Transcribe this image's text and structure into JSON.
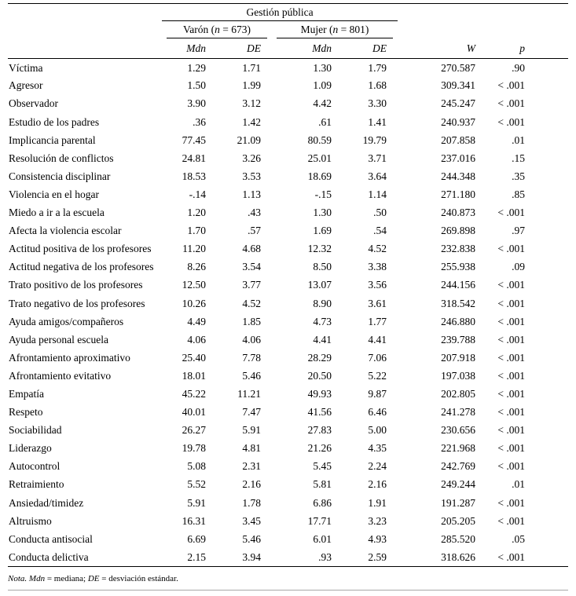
{
  "table": {
    "spanner": "Gestión pública",
    "groups": [
      {
        "pre": "Varón (",
        "n": "n",
        "post": " = 673)"
      },
      {
        "pre": "Mujer (",
        "n": "n",
        "post": " = 801)"
      }
    ],
    "columns": [
      "Mdn",
      "DE",
      "Mdn",
      "DE",
      "W",
      "p"
    ],
    "rows": [
      {
        "label": "Víctima",
        "values": [
          "1.29",
          "1.71",
          "1.30",
          "1.79",
          "270.587",
          ".90"
        ]
      },
      {
        "label": "Agresor",
        "values": [
          "1.50",
          "1.99",
          "1.09",
          "1.68",
          "309.341",
          "< .001"
        ]
      },
      {
        "label": "Observador",
        "values": [
          "3.90",
          "3.12",
          "4.42",
          "3.30",
          "245.247",
          "< .001"
        ]
      },
      {
        "label": "Estudio de los padres",
        "values": [
          ".36",
          "1.42",
          ".61",
          "1.41",
          "240.937",
          "< .001"
        ]
      },
      {
        "label": "Implicancia parental",
        "values": [
          "77.45",
          "21.09",
          "80.59",
          "19.79",
          "207.858",
          ".01"
        ]
      },
      {
        "label": "Resolución de conflictos",
        "values": [
          "24.81",
          "3.26",
          "25.01",
          "3.71",
          "237.016",
          ".15"
        ]
      },
      {
        "label": "Consistencia disciplinar",
        "values": [
          "18.53",
          "3.53",
          "18.69",
          "3.64",
          "244.348",
          ".35"
        ]
      },
      {
        "label": "Violencia en el hogar",
        "values": [
          "-.14",
          "1.13",
          "-.15",
          "1.14",
          "271.180",
          ".85"
        ]
      },
      {
        "label": "Miedo a ir a la escuela",
        "values": [
          "1.20",
          ".43",
          "1.30",
          ".50",
          "240.873",
          "< .001"
        ]
      },
      {
        "label": "Afecta la violencia escolar",
        "values": [
          "1.70",
          ".57",
          "1.69",
          ".54",
          "269.898",
          ".97"
        ]
      },
      {
        "label": "Actitud positiva de los profesores",
        "values": [
          "11.20",
          "4.68",
          "12.32",
          "4.52",
          "232.838",
          "< .001"
        ]
      },
      {
        "label": "Actitud negativa de los profesores",
        "values": [
          "8.26",
          "3.54",
          "8.50",
          "3.38",
          "255.938",
          ".09"
        ]
      },
      {
        "label": "Trato positivo de los profesores",
        "values": [
          "12.50",
          "3.77",
          "13.07",
          "3.56",
          "244.156",
          "< .001"
        ]
      },
      {
        "label": "Trato negativo de los profesores",
        "values": [
          "10.26",
          "4.52",
          "8.90",
          "3.61",
          "318.542",
          "< .001"
        ]
      },
      {
        "label": "Ayuda amigos/compañeros",
        "values": [
          "4.49",
          "1.85",
          "4.73",
          "1.77",
          "246.880",
          "< .001"
        ]
      },
      {
        "label": "Ayuda personal escuela",
        "values": [
          "4.06",
          "4.06",
          "4.41",
          "4.41",
          "239.788",
          "< .001"
        ]
      },
      {
        "label": "Afrontamiento aproximativo",
        "values": [
          "25.40",
          "7.78",
          "28.29",
          "7.06",
          "207.918",
          "< .001"
        ]
      },
      {
        "label": "Afrontamiento evitativo",
        "values": [
          "18.01",
          "5.46",
          "20.50",
          "5.22",
          "197.038",
          "< .001"
        ]
      },
      {
        "label": "Empatía",
        "values": [
          "45.22",
          "11.21",
          "49.93",
          "9.87",
          "202.805",
          "< .001"
        ]
      },
      {
        "label": "Respeto",
        "values": [
          "40.01",
          "7.47",
          "41.56",
          "6.46",
          "241.278",
          "< .001"
        ]
      },
      {
        "label": "Sociabilidad",
        "values": [
          "26.27",
          "5.91",
          "27.83",
          "5.00",
          "230.656",
          "< .001"
        ]
      },
      {
        "label": "Liderazgo",
        "values": [
          "19.78",
          "4.81",
          "21.26",
          "4.35",
          "221.968",
          "< .001"
        ]
      },
      {
        "label": "Autocontrol",
        "values": [
          "5.08",
          "2.31",
          "5.45",
          "2.24",
          "242.769",
          "< .001"
        ]
      },
      {
        "label": "Retraimiento",
        "values": [
          "5.52",
          "2.16",
          "5.81",
          "2.16",
          "249.244",
          ".01"
        ]
      },
      {
        "label": "Ansiedad/timidez",
        "values": [
          "5.91",
          "1.78",
          "6.86",
          "1.91",
          "191.287",
          "< .001"
        ]
      },
      {
        "label": "Altruismo",
        "values": [
          "16.31",
          "3.45",
          "17.71",
          "3.23",
          "205.205",
          "< .001"
        ]
      },
      {
        "label": "Conducta antisocial",
        "values": [
          "6.69",
          "5.46",
          "6.01",
          "4.93",
          "285.520",
          ".05"
        ]
      },
      {
        "label": "Conducta delictiva",
        "values": [
          "2.15",
          "3.94",
          ".93",
          "2.59",
          "318.626",
          "< .001"
        ]
      }
    ],
    "note": {
      "p1": "Nota.",
      "p2": "Mdn",
      "p3": "= mediana;",
      "p4": "DE",
      "p5": "= desviación estándar."
    }
  }
}
